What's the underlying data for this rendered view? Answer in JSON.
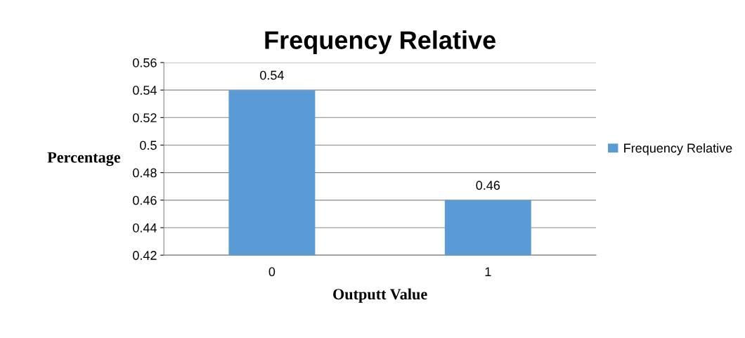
{
  "chart_data": {
    "type": "bar",
    "title": "Frequency Relative",
    "xlabel": "Outputt Value",
    "ylabel": "Percentage",
    "categories": [
      "0",
      "1"
    ],
    "series": [
      {
        "name": "Frequency Relative",
        "color": "#5b9bd5",
        "values": [
          0.54,
          0.46
        ]
      }
    ],
    "ylim": [
      0.42,
      0.56
    ],
    "yticks": [
      0.42,
      0.44,
      0.46,
      0.48,
      0.5,
      0.52,
      0.54,
      0.56
    ],
    "grid": "y",
    "legend": "right",
    "data_labels": true
  }
}
